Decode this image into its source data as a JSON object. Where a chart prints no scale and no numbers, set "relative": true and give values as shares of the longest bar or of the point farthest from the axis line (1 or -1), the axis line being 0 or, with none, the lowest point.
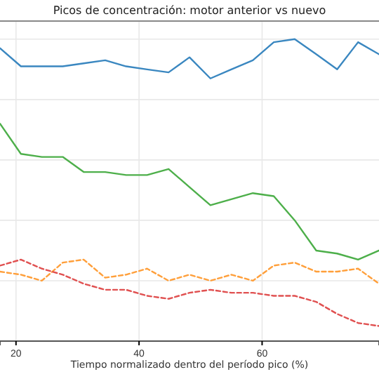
{
  "chart_data": {
    "type": "line",
    "title": "Picos de concentración: motor anterior vs nuevo",
    "xlabel": "Tiempo normalizado dentro del período pico (%)",
    "relative": true,
    "xlim": [
      17.4,
      79
    ],
    "xticks": [
      20,
      40,
      60
    ],
    "grid": true,
    "x": [
      17.4,
      20.8,
      24.2,
      27.6,
      31.0,
      34.5,
      37.9,
      41.3,
      44.8,
      48.2,
      51.6,
      55.0,
      58.5,
      61.9,
      65.3,
      68.8,
      72.2,
      75.6,
      79.0
    ],
    "series": [
      {
        "color": "#3a87c0",
        "line_style": "solid",
        "values": [
          0.97,
          0.91,
          0.91,
          0.91,
          0.92,
          0.93,
          0.91,
          0.9,
          0.89,
          0.94,
          0.87,
          0.9,
          0.93,
          0.99,
          1,
          0.95,
          0.9,
          0.99,
          0.95
        ]
      },
      {
        "color": "#4daf4a",
        "line_style": "solid",
        "values": [
          0.72,
          0.62,
          0.61,
          0.61,
          0.56,
          0.56,
          0.55,
          0.55,
          0.57,
          0.51,
          0.45,
          0.47,
          0.49,
          0.48,
          0.4,
          0.3,
          0.29,
          0.27,
          0.3
        ]
      },
      {
        "color": "#ff9f3a",
        "line_style": "dashed",
        "values": [
          0.23,
          0.22,
          0.2,
          0.26,
          0.27,
          0.21,
          0.22,
          0.24,
          0.2,
          0.22,
          0.2,
          0.22,
          0.2,
          0.25,
          0.26,
          0.23,
          0.23,
          0.24,
          0.19
        ]
      },
      {
        "color": "#e05050",
        "line_style": "dashed",
        "values": [
          0.25,
          0.27,
          0.24,
          0.22,
          0.19,
          0.17,
          0.17,
          0.15,
          0.14,
          0.16,
          0.17,
          0.16,
          0.16,
          0.15,
          0.15,
          0.13,
          0.09,
          0.06,
          0.05
        ]
      }
    ]
  }
}
